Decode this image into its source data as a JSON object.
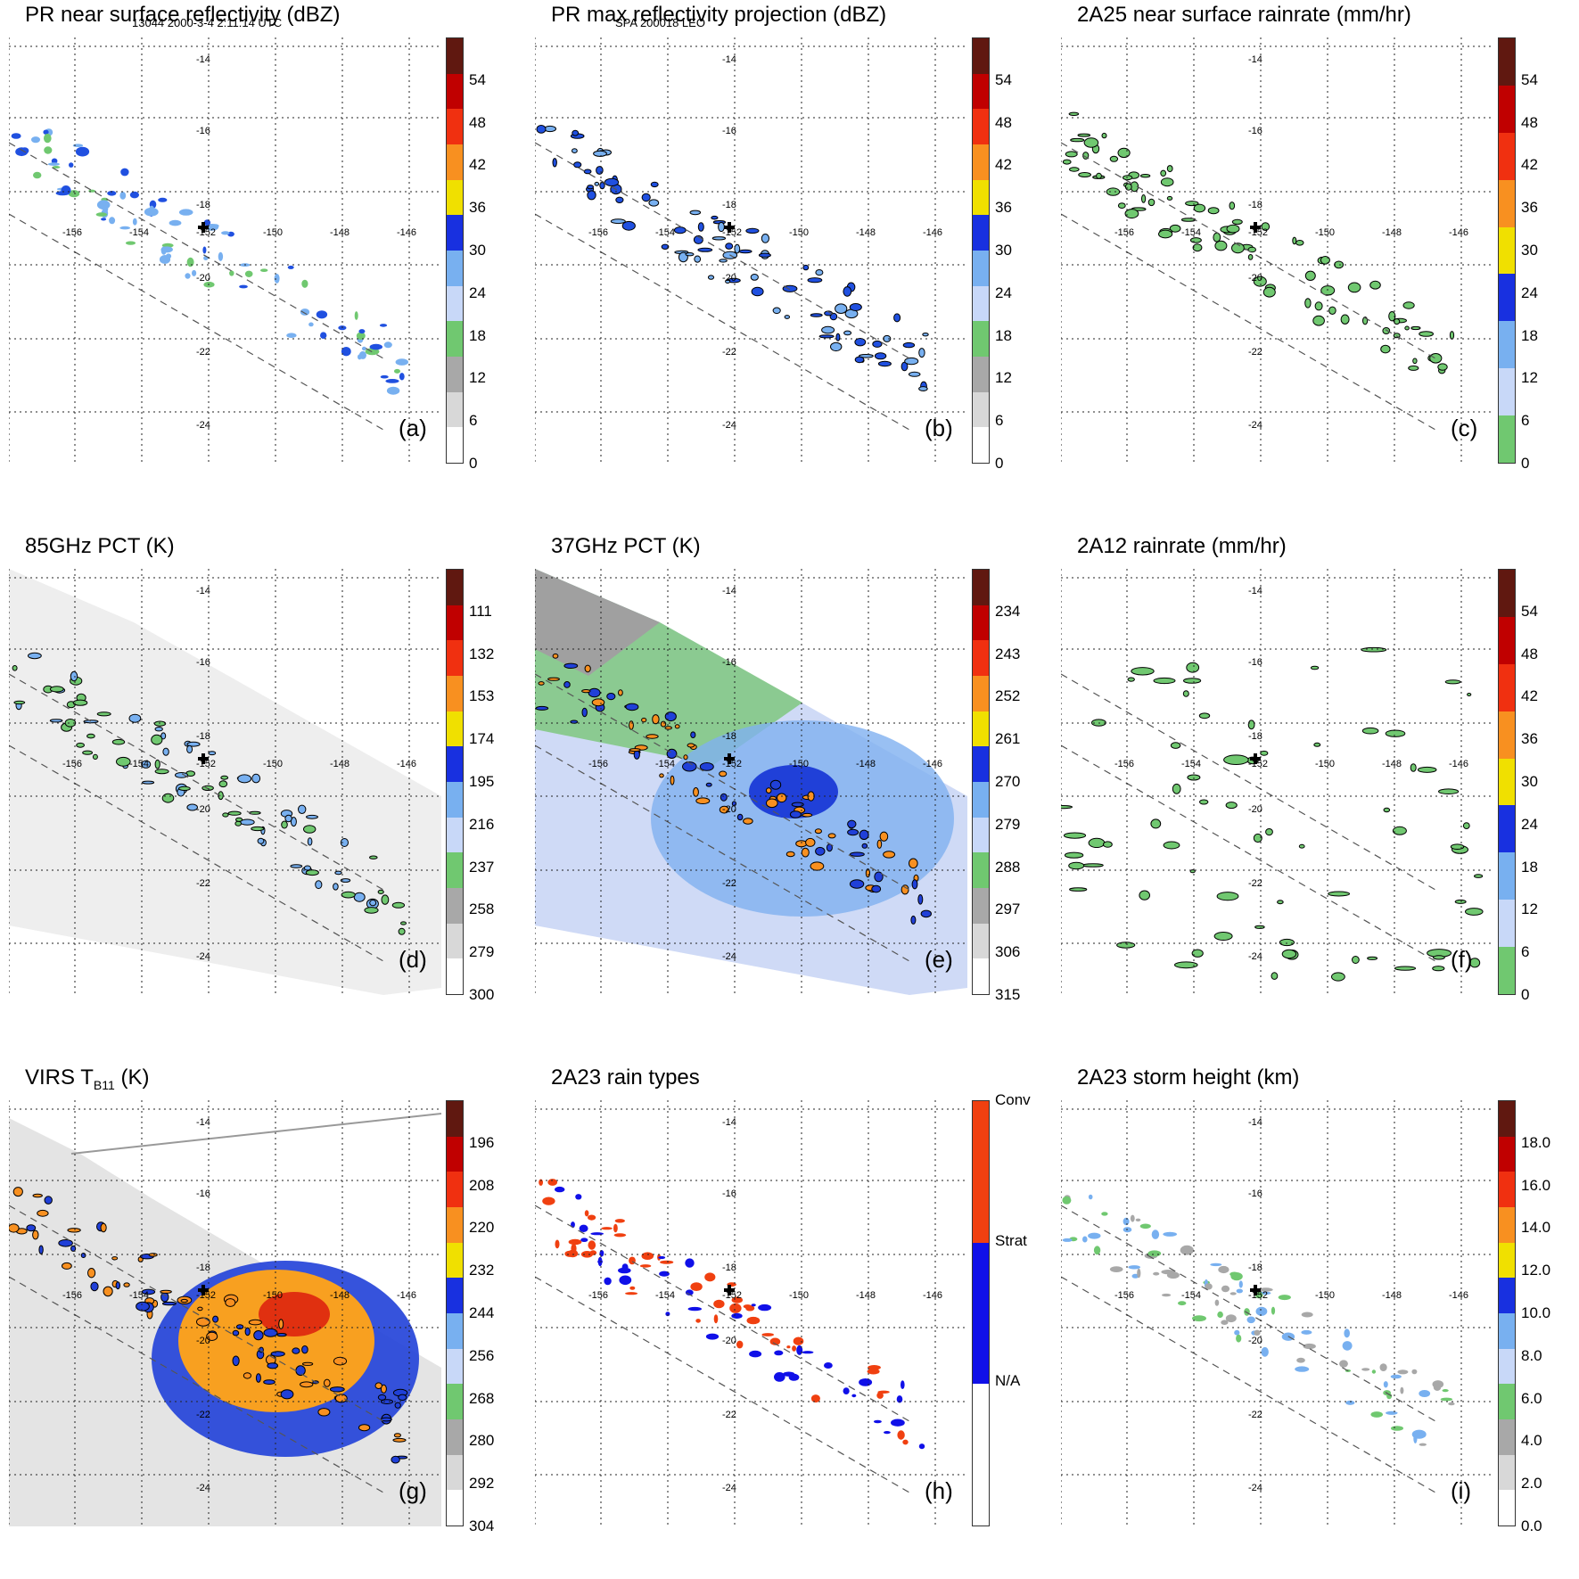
{
  "header": {
    "left": "13044 2000-3-4 2:11:14 UTC",
    "center": "SPA 200018 LEO"
  },
  "map": {
    "lon_labels": [
      "-156",
      "-154",
      "-152",
      "-150",
      "-148",
      "-146"
    ],
    "lat_labels": [
      "-14",
      "-16",
      "-18",
      "-20",
      "-22",
      "-24"
    ]
  },
  "panels": [
    {
      "id": "a",
      "title": "PR near surface reflectivity (dBZ)",
      "letter": "(a)",
      "ticks": [
        "54",
        "48",
        "42",
        "36",
        "30",
        "24",
        "18",
        "12",
        "6",
        "0"
      ],
      "colors": [
        "#ffffff",
        "#d8d8d8",
        "#a8a8a8",
        "#70c870",
        "#c8d8f8",
        "#78b0f0",
        "#1830e0",
        "#f0e000",
        "#f89020",
        "#f03010",
        "#c00000",
        "#601810"
      ]
    },
    {
      "id": "b",
      "title": "PR max reflectivity projection (dBZ)",
      "letter": "(b)",
      "ticks": [
        "54",
        "48",
        "42",
        "36",
        "30",
        "24",
        "18",
        "12",
        "6",
        "0"
      ],
      "colors": [
        "#ffffff",
        "#d8d8d8",
        "#a8a8a8",
        "#70c870",
        "#c8d8f8",
        "#78b0f0",
        "#1830e0",
        "#f0e000",
        "#f89020",
        "#f03010",
        "#c00000",
        "#601810"
      ]
    },
    {
      "id": "c",
      "title": "2A25 near surface rainrate (mm/hr)",
      "letter": "(c)",
      "ticks": [
        "54",
        "48",
        "42",
        "36",
        "30",
        "24",
        "18",
        "12",
        "6",
        "0"
      ],
      "colors": [
        "#70c870",
        "#c8d8f8",
        "#78b0f0",
        "#1830e0",
        "#f0e000",
        "#f89020",
        "#f03010",
        "#c00000",
        "#601810"
      ]
    },
    {
      "id": "d",
      "title": "85GHz PCT (K)",
      "letter": "(d)",
      "ticks": [
        "111",
        "132",
        "153",
        "174",
        "195",
        "216",
        "237",
        "258",
        "279",
        "300"
      ],
      "colors": [
        "#ffffff",
        "#d8d8d8",
        "#a8a8a8",
        "#70c870",
        "#c8d8f8",
        "#78b0f0",
        "#1830e0",
        "#f0e000",
        "#f89020",
        "#f03010",
        "#c00000",
        "#601810"
      ]
    },
    {
      "id": "e",
      "title": "37GHz PCT (K)",
      "letter": "(e)",
      "ticks": [
        "234",
        "243",
        "252",
        "261",
        "270",
        "279",
        "288",
        "297",
        "306",
        "315"
      ],
      "colors": [
        "#ffffff",
        "#d8d8d8",
        "#a8a8a8",
        "#70c870",
        "#c8d8f8",
        "#78b0f0",
        "#1830e0",
        "#f0e000",
        "#f89020",
        "#f03010",
        "#c00000",
        "#601810"
      ]
    },
    {
      "id": "f",
      "title": "2A12 rainrate (mm/hr)",
      "letter": "(f)",
      "ticks": [
        "54",
        "48",
        "42",
        "36",
        "30",
        "24",
        "18",
        "12",
        "6",
        "0"
      ],
      "colors": [
        "#70c870",
        "#c8d8f8",
        "#78b0f0",
        "#1830e0",
        "#f0e000",
        "#f89020",
        "#f03010",
        "#c00000",
        "#601810"
      ]
    },
    {
      "id": "g",
      "title_main": "VIRS T",
      "title_sub": "B11",
      "title_end": " (K)",
      "letter": "(g)",
      "ticks": [
        "196",
        "208",
        "220",
        "232",
        "244",
        "256",
        "268",
        "280",
        "292",
        "304"
      ],
      "colors": [
        "#ffffff",
        "#d8d8d8",
        "#a8a8a8",
        "#70c870",
        "#c8d8f8",
        "#78b0f0",
        "#1830e0",
        "#f0e000",
        "#f89020",
        "#f03010",
        "#c00000",
        "#601810"
      ]
    },
    {
      "id": "h",
      "title": "2A23 rain types",
      "letter": "(h)",
      "ticks": [
        "Conv",
        "Strat",
        "N/A"
      ],
      "colors": [
        "#ffffff",
        "#1010e8",
        "#f04010"
      ]
    },
    {
      "id": "i",
      "title": "2A23 storm height (km)",
      "letter": "(i)",
      "ticks": [
        "18.0",
        "16.0",
        "14.0",
        "12.0",
        "10.0",
        "8.0",
        "6.0",
        "4.0",
        "2.0",
        "0.0"
      ],
      "colors": [
        "#ffffff",
        "#d8d8d8",
        "#a8a8a8",
        "#70c870",
        "#c8d8f8",
        "#78b0f0",
        "#1830e0",
        "#f0e000",
        "#f89020",
        "#f03010",
        "#c00000",
        "#601810"
      ]
    }
  ]
}
